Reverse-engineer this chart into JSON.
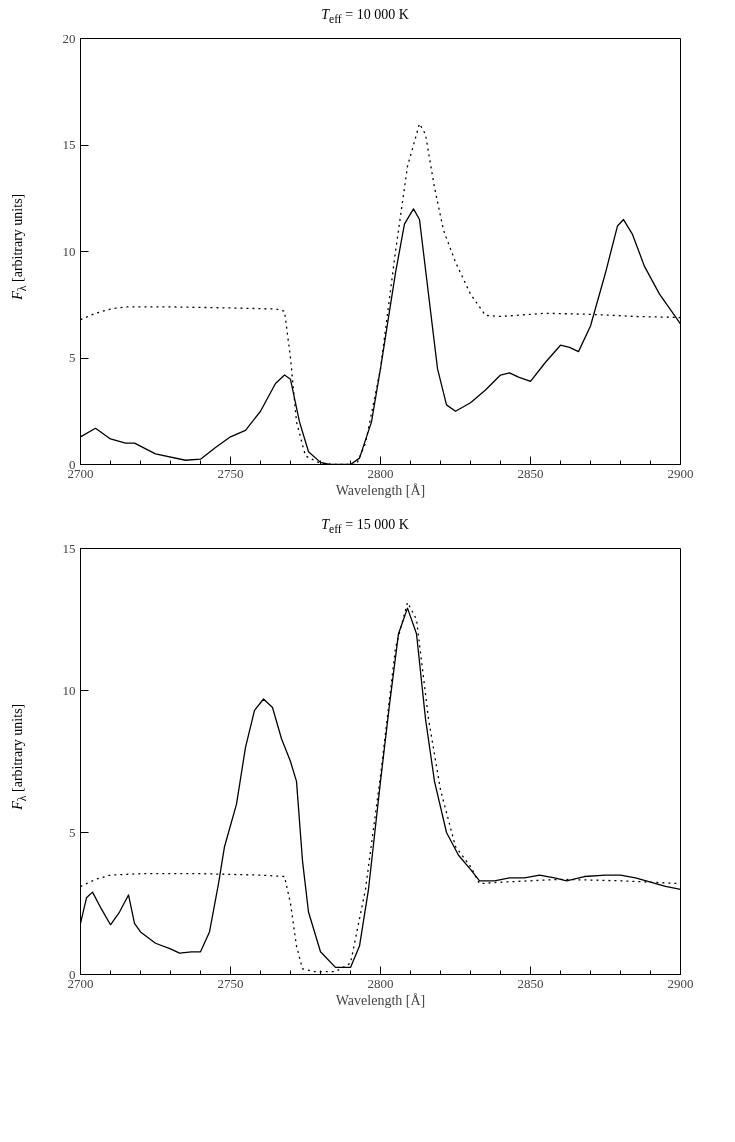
{
  "chart_data": [
    {
      "type": "line",
      "title": "T$_{eff}$ = 10 000 K",
      "xlabel": "Wavelength [Å]",
      "ylabel": "F$_{λ}$ [arbitrary units]",
      "xlim": [
        2700,
        2900
      ],
      "ylim": [
        0,
        20
      ],
      "xticks": [
        2700,
        2750,
        2800,
        2850,
        2900
      ],
      "yticks": [
        0,
        5,
        10,
        15,
        20
      ],
      "series": [
        {
          "color": "#000000",
          "line_style": "solid",
          "x": [
            2700,
            2705,
            2710,
            2715,
            2718,
            2725,
            2735,
            2740,
            2745,
            2750,
            2755,
            2760,
            2765,
            2768,
            2770,
            2773,
            2776,
            2780,
            2783,
            2790,
            2793,
            2797,
            2800,
            2805,
            2808,
            2811,
            2813,
            2816,
            2819,
            2822,
            2825,
            2830,
            2835,
            2840,
            2843,
            2846,
            2850,
            2855,
            2860,
            2863,
            2866,
            2870,
            2875,
            2879,
            2881,
            2884,
            2888,
            2893,
            2900
          ],
          "values": [
            1.3,
            1.7,
            1.2,
            1.0,
            1.0,
            0.5,
            0.2,
            0.25,
            0.8,
            1.3,
            1.6,
            2.5,
            3.8,
            4.2,
            4.0,
            2.0,
            0.6,
            0.1,
            0.0,
            0.0,
            0.3,
            2.0,
            4.5,
            9.0,
            11.3,
            12.0,
            11.5,
            8.0,
            4.5,
            2.8,
            2.5,
            2.9,
            3.5,
            4.2,
            4.3,
            4.1,
            3.9,
            4.8,
            5.6,
            5.5,
            5.3,
            6.5,
            9.0,
            11.2,
            11.5,
            10.8,
            9.3,
            8.0,
            6.6
          ]
        },
        {
          "color": "#000000",
          "line_style": "dotted",
          "x": [
            2700,
            2705,
            2710,
            2715,
            2730,
            2750,
            2765,
            2768,
            2770,
            2772,
            2775,
            2780,
            2785,
            2792,
            2795,
            2800,
            2805,
            2809,
            2813,
            2815,
            2818,
            2821,
            2825,
            2830,
            2835,
            2840,
            2855,
            2870,
            2885,
            2900
          ],
          "values": [
            6.8,
            7.1,
            7.3,
            7.4,
            7.4,
            7.35,
            7.3,
            7.2,
            5.0,
            2.0,
            0.4,
            0.05,
            0.0,
            0.0,
            1.0,
            4.5,
            10.0,
            14.0,
            16.0,
            15.5,
            13.0,
            11.0,
            9.5,
            8.0,
            7.0,
            6.95,
            7.1,
            7.05,
            6.95,
            6.9
          ]
        }
      ]
    },
    {
      "type": "line",
      "title": "T$_{eff}$ = 15 000 K",
      "xlabel": "Wavelength [Å]",
      "ylabel": "F$_{λ}$ [arbitrary units]",
      "xlim": [
        2700,
        2900
      ],
      "ylim": [
        0,
        15
      ],
      "xticks": [
        2700,
        2750,
        2800,
        2850,
        2900
      ],
      "yticks": [
        0,
        5,
        10,
        15
      ],
      "series": [
        {
          "color": "#000000",
          "line_style": "solid",
          "x": [
            2700,
            2702,
            2704,
            2707,
            2710,
            2713,
            2716,
            2718,
            2720,
            2725,
            2730,
            2733,
            2737,
            2740,
            2743,
            2746,
            2748,
            2752,
            2755,
            2758,
            2761,
            2764,
            2767,
            2770,
            2772,
            2774,
            2776,
            2780,
            2785,
            2790,
            2793,
            2796,
            2800,
            2803,
            2806,
            2809,
            2812,
            2815,
            2818,
            2822,
            2826,
            2830,
            2833,
            2838,
            2843,
            2848,
            2853,
            2858,
            2862,
            2868,
            2875,
            2880,
            2885,
            2890,
            2895,
            2900
          ],
          "values": [
            1.8,
            2.7,
            2.9,
            2.3,
            1.75,
            2.2,
            2.8,
            1.8,
            1.5,
            1.1,
            0.9,
            0.75,
            0.8,
            0.8,
            1.5,
            3.2,
            4.5,
            6.0,
            8.0,
            9.3,
            9.7,
            9.4,
            8.3,
            7.5,
            6.8,
            4.0,
            2.2,
            0.8,
            0.25,
            0.25,
            1.0,
            3.0,
            6.8,
            9.5,
            12.0,
            12.9,
            12.0,
            9.0,
            6.8,
            5.0,
            4.2,
            3.7,
            3.3,
            3.3,
            3.4,
            3.4,
            3.5,
            3.4,
            3.3,
            3.45,
            3.5,
            3.5,
            3.4,
            3.25,
            3.1,
            3.0
          ]
        },
        {
          "color": "#000000",
          "line_style": "dotted",
          "x": [
            2700,
            2705,
            2710,
            2720,
            2740,
            2760,
            2768,
            2770,
            2772,
            2774,
            2778,
            2785,
            2790,
            2795,
            2800,
            2805,
            2809,
            2812,
            2816,
            2820,
            2825,
            2830,
            2833,
            2840,
            2860,
            2880,
            2900
          ],
          "values": [
            3.1,
            3.35,
            3.5,
            3.55,
            3.55,
            3.5,
            3.45,
            2.5,
            1.0,
            0.2,
            0.1,
            0.1,
            0.4,
            3.0,
            7.0,
            11.5,
            13.1,
            12.5,
            9.0,
            6.5,
            4.5,
            3.8,
            3.2,
            3.25,
            3.35,
            3.3,
            3.2
          ]
        }
      ]
    }
  ]
}
